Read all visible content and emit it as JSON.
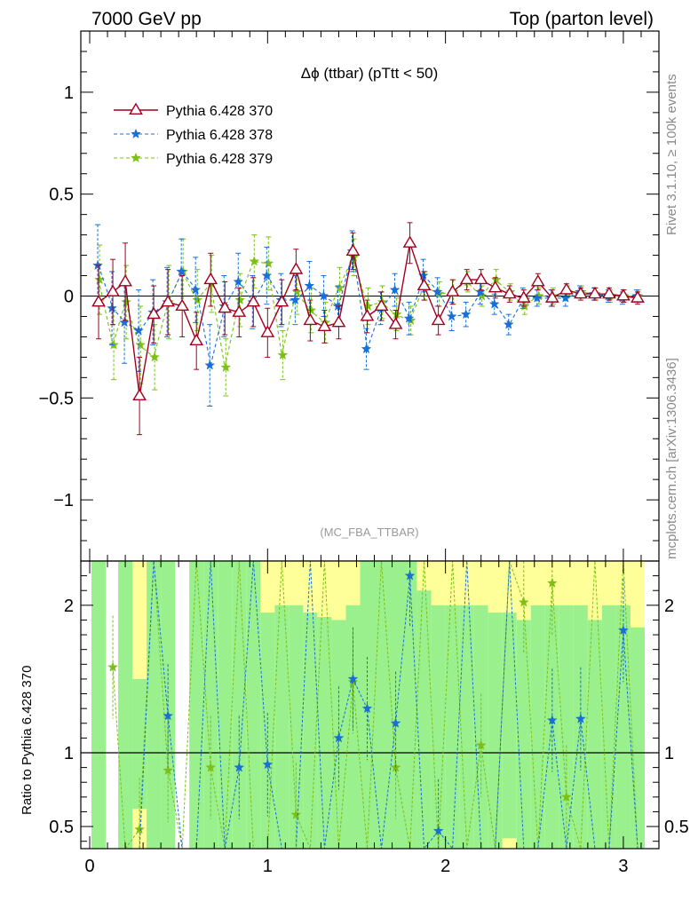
{
  "header": {
    "left": "7000 GeV pp",
    "right": "Top (parton level)"
  },
  "side_labels": {
    "rivet": "Rivet 3.1.10, ≥ 100k events",
    "mcplots": "mcplots.cern.ch [arXiv:1306.3436]"
  },
  "plot": {
    "title": "Δϕ (ttbar) (pTtt < 50)",
    "watermark": "(MC_FBA_TTBAR)",
    "ratio_ylabel": "Ratio to Pythia 6.428 370"
  },
  "colors": {
    "s370": "#a0001e",
    "s378": "#1a6fd6",
    "s379": "#7cbf16",
    "band_green": "#99f08c",
    "band_yellow": "#ffff99"
  },
  "chart_data": {
    "type": "line",
    "x": [
      0.05,
      0.13,
      0.2,
      0.28,
      0.36,
      0.44,
      0.52,
      0.6,
      0.68,
      0.76,
      0.84,
      0.92,
      1.0,
      1.08,
      1.16,
      1.24,
      1.32,
      1.4,
      1.48,
      1.56,
      1.64,
      1.72,
      1.8,
      1.88,
      1.96,
      2.04,
      2.12,
      2.2,
      2.28,
      2.36,
      2.44,
      2.52,
      2.6,
      2.68,
      2.76,
      2.84,
      2.92,
      3.0,
      3.08
    ],
    "series": [
      {
        "name": "Pythia 6.428 370",
        "marker": "open-triangle",
        "values": [
          -0.03,
          0.02,
          0.07,
          -0.49,
          -0.09,
          -0.03,
          -0.05,
          -0.22,
          0.08,
          -0.06,
          -0.08,
          -0.03,
          -0.18,
          -0.03,
          0.13,
          -0.12,
          -0.15,
          -0.13,
          0.22,
          -0.1,
          -0.05,
          -0.14,
          0.26,
          0.05,
          -0.12,
          0.02,
          0.08,
          0.08,
          0.04,
          0.01,
          -0.01,
          0.07,
          -0.01,
          0.03,
          0.01,
          0.01,
          0.01,
          0.0,
          -0.01
        ],
        "errors": [
          0.18,
          0.16,
          0.19,
          0.19,
          0.14,
          0.16,
          0.15,
          0.14,
          0.13,
          0.13,
          0.12,
          0.12,
          0.12,
          0.11,
          0.1,
          0.1,
          0.08,
          0.08,
          0.09,
          0.08,
          0.07,
          0.07,
          0.1,
          0.07,
          0.07,
          0.06,
          0.05,
          0.05,
          0.05,
          0.04,
          0.04,
          0.04,
          0.04,
          0.03,
          0.03,
          0.03,
          0.03,
          0.03,
          0.03
        ]
      },
      {
        "name": "Pythia 6.428 378",
        "marker": "star",
        "values": [
          0.15,
          -0.06,
          -0.13,
          -0.17,
          -0.08,
          -0.03,
          0.12,
          0.03,
          -0.34,
          -0.05,
          0.07,
          -0.03,
          0.1,
          -0.02,
          -0.02,
          0.05,
          0.0,
          -0.05,
          0.22,
          -0.26,
          -0.06,
          0.03,
          -0.11,
          0.1,
          0.02,
          -0.1,
          -0.09,
          0.02,
          -0.04,
          -0.14,
          -0.01,
          -0.01,
          -0.01,
          -0.01,
          0.02,
          0.01,
          0.0,
          -0.01,
          0.0
        ],
        "errors": [
          0.2,
          0.18,
          0.2,
          0.2,
          0.16,
          0.17,
          0.16,
          0.16,
          0.2,
          0.15,
          0.14,
          0.13,
          0.14,
          0.13,
          0.12,
          0.12,
          0.1,
          0.1,
          0.1,
          0.1,
          0.08,
          0.08,
          0.08,
          0.08,
          0.07,
          0.07,
          0.06,
          0.06,
          0.05,
          0.05,
          0.05,
          0.04,
          0.04,
          0.04,
          0.03,
          0.03,
          0.03,
          0.03,
          0.03
        ]
      },
      {
        "name": "Pythia 6.428 379",
        "marker": "star",
        "values": [
          0.08,
          -0.24,
          -0.03,
          -0.24,
          -0.3,
          -0.03,
          0.12,
          -0.02,
          0.06,
          -0.35,
          -0.02,
          0.17,
          0.16,
          -0.29,
          0.02,
          -0.07,
          -0.13,
          0.04,
          0.19,
          -0.05,
          -0.03,
          -0.09,
          -0.12,
          0.05,
          0.01,
          0.02,
          0.07,
          0.0,
          0.08,
          0.02,
          -0.05,
          0.0,
          0.0,
          0.02,
          0.02,
          0.01,
          0.0,
          0.0,
          0.0
        ],
        "errors": [
          0.17,
          0.17,
          0.18,
          0.19,
          0.16,
          0.18,
          0.16,
          0.15,
          0.14,
          0.14,
          0.13,
          0.13,
          0.13,
          0.12,
          0.11,
          0.11,
          0.1,
          0.1,
          0.09,
          0.09,
          0.08,
          0.08,
          0.07,
          0.07,
          0.06,
          0.06,
          0.05,
          0.05,
          0.05,
          0.04,
          0.04,
          0.04,
          0.04,
          0.03,
          0.03,
          0.03,
          0.03,
          0.03,
          0.03
        ]
      }
    ],
    "xlim": [
      -0.05,
      3.2
    ],
    "ylim": [
      -1.3,
      1.3
    ],
    "yticks": [
      -1,
      -0.5,
      0,
      0.5,
      1
    ],
    "ytick_labels": [
      "−1",
      "−0.5",
      "0",
      "0.5",
      "1"
    ],
    "xticks": [
      0,
      1,
      2,
      3
    ],
    "xtick_labels": [
      "0",
      "1",
      "2",
      "3"
    ],
    "ratio": {
      "ylim": [
        0.35,
        2.3
      ],
      "yticks": [
        0.5,
        1,
        2
      ],
      "ytick_labels": [
        "0.5",
        "1",
        "2"
      ],
      "band_yellow_hi": [
        2.3,
        1.0,
        2.3,
        2.3,
        2.3,
        2.3,
        1.0,
        2.3,
        2.3,
        2.3,
        2.3,
        2.3,
        2.3,
        2.3,
        2.3,
        2.3,
        2.3,
        2.3,
        2.3,
        2.3,
        2.3,
        2.3,
        2.3,
        2.3,
        2.3,
        2.3,
        2.3,
        2.3,
        2.3,
        2.3,
        2.3,
        2.3,
        2.3,
        2.3,
        2.3,
        2.3,
        2.3,
        2.3,
        2.3
      ],
      "band_yellow_lo": [
        0.35,
        1.0,
        0.35,
        0.35,
        0.35,
        0.35,
        1.0,
        0.35,
        0.35,
        0.35,
        0.35,
        0.35,
        0.35,
        0.35,
        0.35,
        0.35,
        0.35,
        0.35,
        0.35,
        0.35,
        0.35,
        0.35,
        0.35,
        0.35,
        0.35,
        0.35,
        0.35,
        0.35,
        0.35,
        0.35,
        0.35,
        0.35,
        0.35,
        0.35,
        0.35,
        0.35,
        0.35,
        0.35,
        0.35
      ],
      "band_green_hi": [
        2.3,
        1.0,
        2.3,
        1.5,
        2.3,
        2.3,
        1.0,
        2.3,
        2.3,
        2.3,
        2.3,
        2.3,
        1.95,
        2.0,
        2.0,
        1.95,
        1.92,
        1.9,
        2.0,
        2.3,
        2.3,
        2.3,
        2.3,
        2.1,
        2.0,
        2.0,
        2.0,
        2.0,
        1.95,
        1.95,
        1.9,
        2.0,
        2.0,
        2.0,
        2.0,
        1.9,
        2.0,
        2.0,
        1.85
      ],
      "band_green_lo": [
        0.35,
        1.0,
        0.35,
        0.62,
        0.35,
        0.35,
        1.0,
        0.35,
        0.35,
        0.35,
        0.35,
        0.35,
        0.35,
        0.35,
        0.35,
        0.35,
        0.35,
        0.35,
        0.35,
        0.35,
        0.35,
        0.35,
        0.35,
        0.35,
        0.35,
        0.35,
        0.35,
        0.35,
        0.35,
        0.42,
        0.35,
        0.35,
        0.35,
        0.35,
        0.35,
        0.35,
        0.35,
        0.35,
        0.35
      ],
      "series": [
        {
          "name": "Pythia 6.428 378",
          "values": [
            null,
            null,
            null,
            0.25,
            2.5,
            1.25,
            0.1,
            0.3,
            2.5,
            0.3,
            0.9,
            2.5,
            0.92,
            0.2,
            0.2,
            2.5,
            0.1,
            1.1,
            1.5,
            1.3,
            0.2,
            1.2,
            2.2,
            0.1,
            0.47,
            0.2,
            2.5,
            0.1,
            0.2,
            2.5,
            0.1,
            0.2,
            1.22,
            0.1,
            1.23,
            0.1,
            0.2,
            1.83,
            0.1
          ]
        },
        {
          "name": "Pythia 6.428 379",
          "values": [
            null,
            1.58,
            0.2,
            0.48,
            2.5,
            0.88,
            0.2,
            2.5,
            0.9,
            0.2,
            2.5,
            0.3,
            0.2,
            2.5,
            0.58,
            0.2,
            2.5,
            0.3,
            1.48,
            0.2,
            2.5,
            0.9,
            0.2,
            2.5,
            0.2,
            2.5,
            0.2,
            1.05,
            0.2,
            2.5,
            2.02,
            0.2,
            2.15,
            0.7,
            0.2,
            2.5,
            0.2,
            2.5,
            0.2
          ]
        }
      ]
    }
  }
}
